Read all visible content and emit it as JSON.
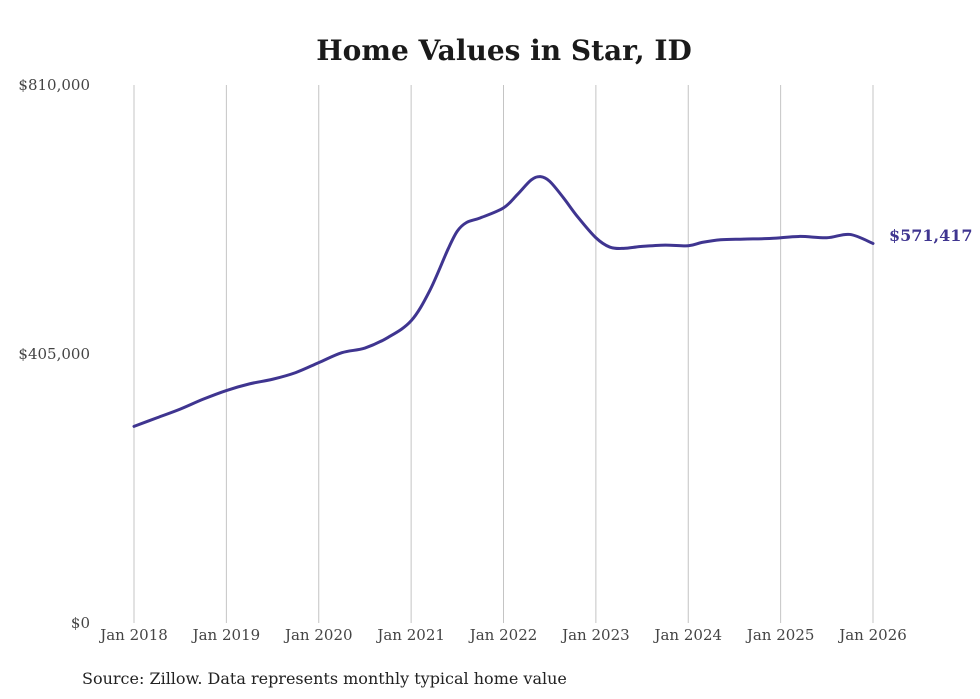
{
  "chart_data": {
    "type": "line",
    "title": "Home Values in Star, ID",
    "xlabel": "",
    "ylabel": "",
    "ylim": [
      0,
      810000
    ],
    "y_ticks": [
      {
        "value": 0,
        "label": "$0"
      },
      {
        "value": 405000,
        "label": "$405,000"
      },
      {
        "value": 810000,
        "label": "$810,000"
      }
    ],
    "x_ticks": [
      {
        "value": 2018.0,
        "label": "Jan 2018"
      },
      {
        "value": 2019.0,
        "label": "Jan 2019"
      },
      {
        "value": 2020.0,
        "label": "Jan 2020"
      },
      {
        "value": 2021.0,
        "label": "Jan 2021"
      },
      {
        "value": 2022.0,
        "label": "Jan 2022"
      },
      {
        "value": 2023.0,
        "label": "Jan 2023"
      },
      {
        "value": 2024.0,
        "label": "Jan 2024"
      },
      {
        "value": 2025.0,
        "label": "Jan 2025"
      },
      {
        "value": 2026.0,
        "label": "Jan 2026"
      }
    ],
    "xlim": [
      2018.0,
      2026.0
    ],
    "grid": "vertical",
    "series": [
      {
        "name": "Typical home value",
        "color": "#3f3590",
        "x": [
          2018.0,
          2018.25,
          2018.5,
          2018.75,
          2019.0,
          2019.25,
          2019.5,
          2019.75,
          2020.0,
          2020.25,
          2020.5,
          2020.75,
          2021.0,
          2021.2,
          2021.4,
          2021.5,
          2021.6,
          2021.75,
          2022.0,
          2022.15,
          2022.3,
          2022.4,
          2022.5,
          2022.65,
          2022.8,
          2023.0,
          2023.15,
          2023.3,
          2023.5,
          2023.75,
          2024.0,
          2024.15,
          2024.35,
          2024.6,
          2024.9,
          2025.2,
          2025.5,
          2025.75,
          2026.0
        ],
        "values": [
          296000,
          309000,
          322000,
          337000,
          350000,
          360000,
          367000,
          377000,
          392000,
          407000,
          414000,
          430000,
          455000,
          500000,
          563000,
          590000,
          603000,
          610000,
          625000,
          645000,
          667000,
          672000,
          665000,
          640000,
          612000,
          580000,
          566000,
          564000,
          567000,
          569000,
          568000,
          573000,
          577000,
          578000,
          579000,
          582000,
          580000,
          585000,
          571417
        ]
      }
    ],
    "end_label": "$571,417"
  },
  "source_note": "Source: Zillow. Data represents monthly typical home value",
  "colors": {
    "line": "#3f3590",
    "grid": "#c4c4c4"
  }
}
